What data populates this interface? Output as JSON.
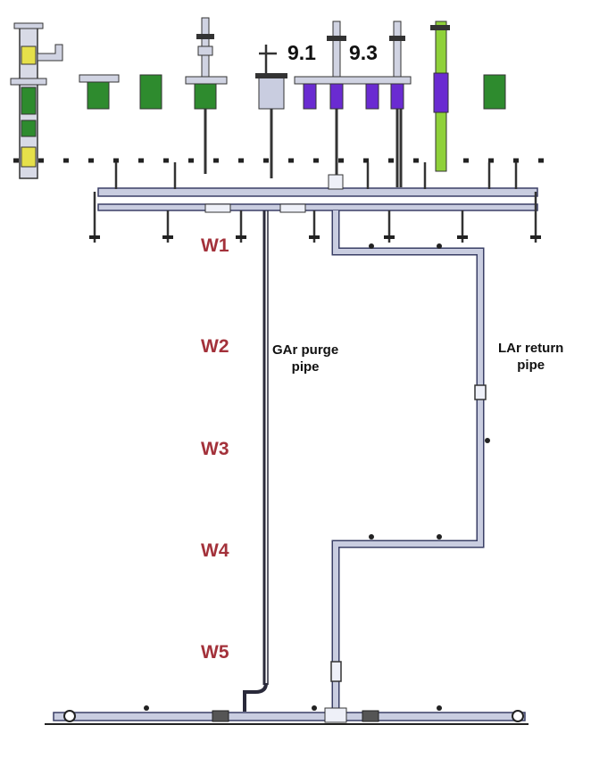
{
  "port_labels": [
    "9.1",
    "9.3"
  ],
  "window_labels": [
    "W1",
    "W2",
    "W3",
    "W4",
    "W5"
  ],
  "pipe_labels": {
    "gar_purge": [
      "GAr purge",
      "pipe"
    ],
    "lar_return": [
      "LAr return",
      "pipe"
    ]
  },
  "colors": {
    "window_label": "#a3313a",
    "pipe_fill": "#c9cde0",
    "pipe_stroke": "#3a3f66",
    "green_flange": "#2e8b2e",
    "purple_flange": "#6a2bd1",
    "yellow_flange": "#e6e04a",
    "lime_pipe": "#8fd13a"
  }
}
